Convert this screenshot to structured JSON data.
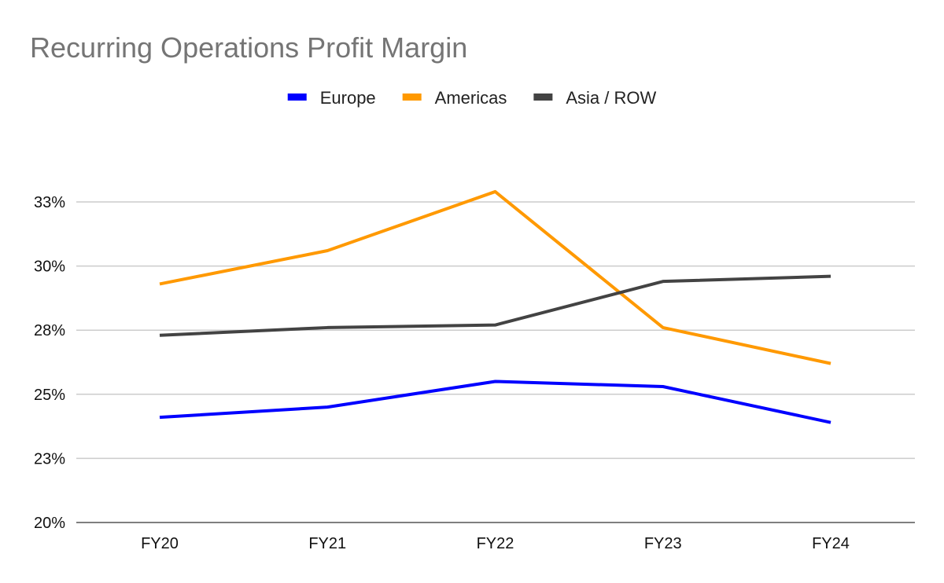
{
  "chart_data": {
    "type": "line",
    "title": "Recurring Operations Profit Margin",
    "categories": [
      "FY20",
      "FY21",
      "FY22",
      "FY23",
      "FY24"
    ],
    "series": [
      {
        "name": "Europe",
        "color": "#0000ff",
        "values": [
          24.1,
          24.5,
          25.5,
          25.3,
          23.9
        ]
      },
      {
        "name": "Americas",
        "color": "#ff9900",
        "values": [
          29.3,
          30.6,
          32.9,
          27.6,
          26.2
        ]
      },
      {
        "name": "Asia / ROW",
        "color": "#434343",
        "values": [
          27.3,
          27.6,
          27.7,
          29.4,
          29.6
        ]
      }
    ],
    "y_ticks": [
      20,
      22.5,
      25,
      27.5,
      30,
      32.5
    ],
    "y_tick_labels": [
      "20%",
      "23%",
      "25%",
      "28%",
      "30%",
      "33%"
    ],
    "ylim": [
      20,
      32.5
    ],
    "xlabel": "",
    "ylabel": "",
    "grid": true,
    "legend_position": "top-center"
  }
}
